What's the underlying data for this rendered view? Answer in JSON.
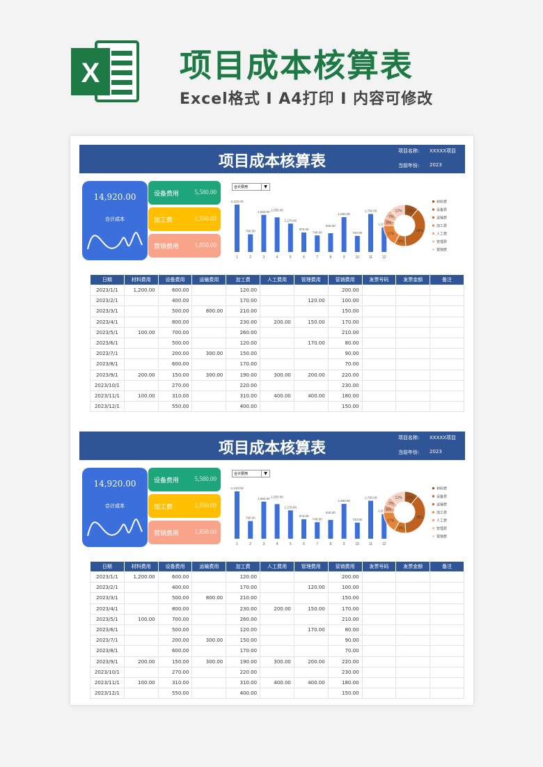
{
  "banner": {
    "logo_letter": "X",
    "title": "项目成本核算表",
    "subtitle": "Excel格式 I A4打印 I 内容可修改"
  },
  "colors": {
    "header": "#2f5597",
    "total": "#3a6fdc",
    "equipment": "#1ea57a",
    "processing": "#ffbe00",
    "marketing": "#f9a48a",
    "excel_green": "#1e7a45"
  },
  "sheet": {
    "title": "项目成本核算表",
    "project_label": "项目名称:",
    "project_value": "XXXXX项目",
    "year_label": "当前年份:",
    "year_value": "2023",
    "total_value": "14,920.00",
    "total_label": "合计成本",
    "kpis": [
      {
        "label": "设备费用",
        "value": "5,580.00",
        "color": "#1ea57a"
      },
      {
        "label": "加工费",
        "value": "2,550.00",
        "color": "#ffbe00"
      },
      {
        "label": "营销费用",
        "value": "1,850.00",
        "color": "#f9a48a"
      }
    ],
    "dropdown": "合计费用",
    "chart_data": [
      {
        "type": "bar",
        "categories": [
          "1",
          "2",
          "3",
          "4",
          "5",
          "6",
          "7",
          "8",
          "9",
          "10",
          "11",
          "12"
        ],
        "values": [
          2120,
          790,
          1660,
          1550,
          1270,
          870,
          740,
          840,
          1560,
          720,
          1700,
          1100
        ],
        "labels": [
          "2,120.00",
          "790.00",
          "1,660.00",
          "1,550.00",
          "1,270.00",
          "870.00",
          "740.00",
          "840.00",
          "1,560.00",
          "720.00",
          "1,700.00",
          "1,100.00"
        ],
        "color": "#3a6fdc"
      },
      {
        "type": "pie",
        "donut": true,
        "legend_position": "right",
        "categories": [
          "材料费",
          "设备费",
          "运输费",
          "加工费",
          "人工费",
          "管理费",
          "营销费"
        ],
        "values": [
          11,
          38,
          9,
          17,
          6,
          7,
          12
        ],
        "colors": [
          "#a0521a",
          "#c0621f",
          "#d06e24",
          "#e8843a",
          "#f0a07a",
          "#f4b8a0",
          "#f8d2c4"
        ]
      }
    ],
    "table": {
      "headers": [
        "日期",
        "材料费用",
        "设备费用",
        "运输费用",
        "加工费",
        "人工费用",
        "管理费用",
        "营销费用",
        "发票号码",
        "发票金额",
        "备注"
      ],
      "rows": [
        [
          "2023/1/1",
          "1,200.00",
          "600.00",
          "",
          "120.00",
          "",
          "",
          "200.00",
          "",
          "",
          ""
        ],
        [
          "2023/2/1",
          "",
          "400.00",
          "",
          "170.00",
          "",
          "120.00",
          "100.00",
          "",
          "",
          ""
        ],
        [
          "2023/3/1",
          "",
          "500.00",
          "800.00",
          "210.00",
          "",
          "",
          "150.00",
          "",
          "",
          ""
        ],
        [
          "2023/4/1",
          "",
          "800.00",
          "",
          "230.00",
          "200.00",
          "150.00",
          "170.00",
          "",
          "",
          ""
        ],
        [
          "2023/5/1",
          "100.00",
          "700.00",
          "",
          "260.00",
          "",
          "",
          "210.00",
          "",
          "",
          ""
        ],
        [
          "2023/6/1",
          "",
          "500.00",
          "",
          "120.00",
          "",
          "170.00",
          "80.00",
          "",
          "",
          ""
        ],
        [
          "2023/7/1",
          "",
          "200.00",
          "300.00",
          "150.00",
          "",
          "",
          "90.00",
          "",
          "",
          ""
        ],
        [
          "2023/8/1",
          "",
          "600.00",
          "",
          "170.00",
          "",
          "",
          "70.00",
          "",
          "",
          ""
        ],
        [
          "2023/9/1",
          "200.00",
          "150.00",
          "300.00",
          "190.00",
          "300.00",
          "200.00",
          "220.00",
          "",
          "",
          ""
        ],
        [
          "2023/10/1",
          "",
          "270.00",
          "",
          "220.00",
          "",
          "",
          "230.00",
          "",
          "",
          ""
        ],
        [
          "2023/11/1",
          "100.00",
          "310.00",
          "",
          "310.00",
          "400.00",
          "400.00",
          "180.00",
          "",
          "",
          ""
        ],
        [
          "2023/12/1",
          "",
          "550.00",
          "",
          "400.00",
          "",
          "",
          "150.00",
          "",
          "",
          ""
        ]
      ]
    }
  }
}
